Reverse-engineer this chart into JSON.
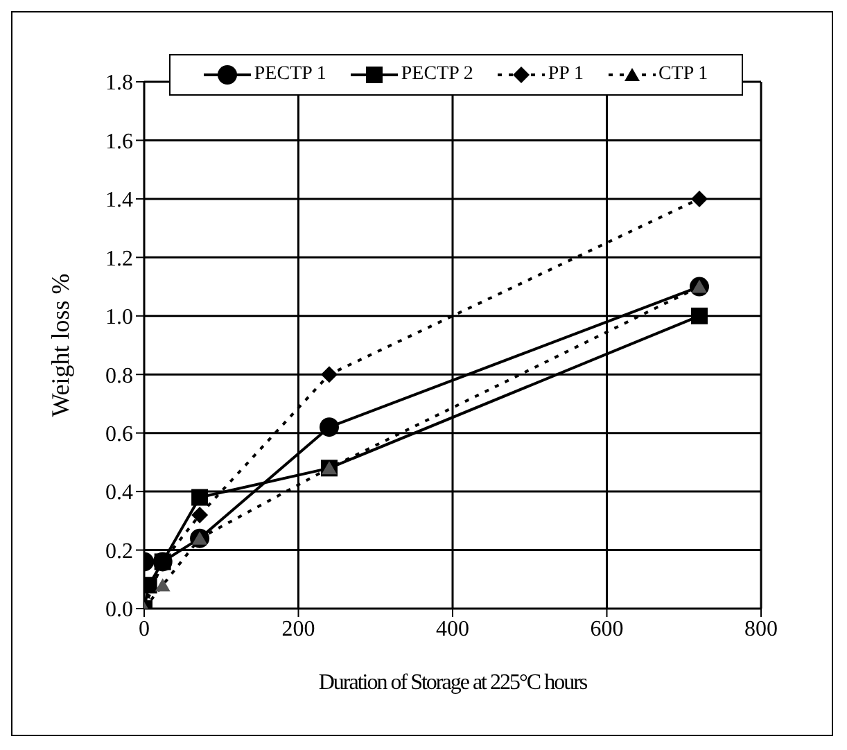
{
  "chart_data": {
    "type": "line",
    "xlabel": "Duration of Storage at 225°C hours",
    "ylabel": "Weight loss %",
    "xlim": [
      0,
      800
    ],
    "xticks": [
      0,
      200,
      400,
      600,
      800
    ],
    "ylim": [
      0,
      1.8
    ],
    "yticks": [
      {
        "value": 0,
        "label": "0.0"
      },
      {
        "value": 0.2,
        "label": "0.2"
      },
      {
        "value": 0.4,
        "label": "0.4"
      },
      {
        "value": 0.6,
        "label": "0.6"
      },
      {
        "value": 0.8,
        "label": "0.8"
      },
      {
        "value": 1,
        "label": "1.0"
      },
      {
        "value": 1.2,
        "label": "1.2"
      },
      {
        "value": 1.4,
        "label": "1.4"
      },
      {
        "value": 1.6,
        "label": "1.6"
      },
      {
        "value": 1.8,
        "label": "1.8"
      }
    ],
    "grid": true,
    "legend": "top",
    "series": [
      {
        "name": "PECTP 1",
        "color": "#000000",
        "marker": "circle",
        "line_style": "solid",
        "x": [
          0,
          24,
          72,
          240,
          720
        ],
        "values": [
          0.16,
          0.16,
          0.24,
          0.62,
          1.1
        ]
      },
      {
        "name": "PECTP 2",
        "color": "#000000",
        "marker": "square",
        "line_style": "solid",
        "x": [
          0,
          6,
          24,
          72,
          240,
          720
        ],
        "values": [
          0,
          0.08,
          0.16,
          0.38,
          0.48,
          1.0
        ]
      },
      {
        "name": "PP 1",
        "color": "#000000",
        "marker": "diamond",
        "line_style": "dashed",
        "x": [
          0,
          24,
          72,
          240,
          720
        ],
        "values": [
          0,
          0.16,
          0.32,
          0.8,
          1.4
        ]
      },
      {
        "name": "CTP 1",
        "color": "#000000",
        "marker": "triangle",
        "line_style": "dashed",
        "x": [
          0,
          24,
          72,
          240,
          720
        ],
        "values": [
          0,
          0.08,
          0.24,
          0.48,
          1.1
        ]
      }
    ]
  }
}
